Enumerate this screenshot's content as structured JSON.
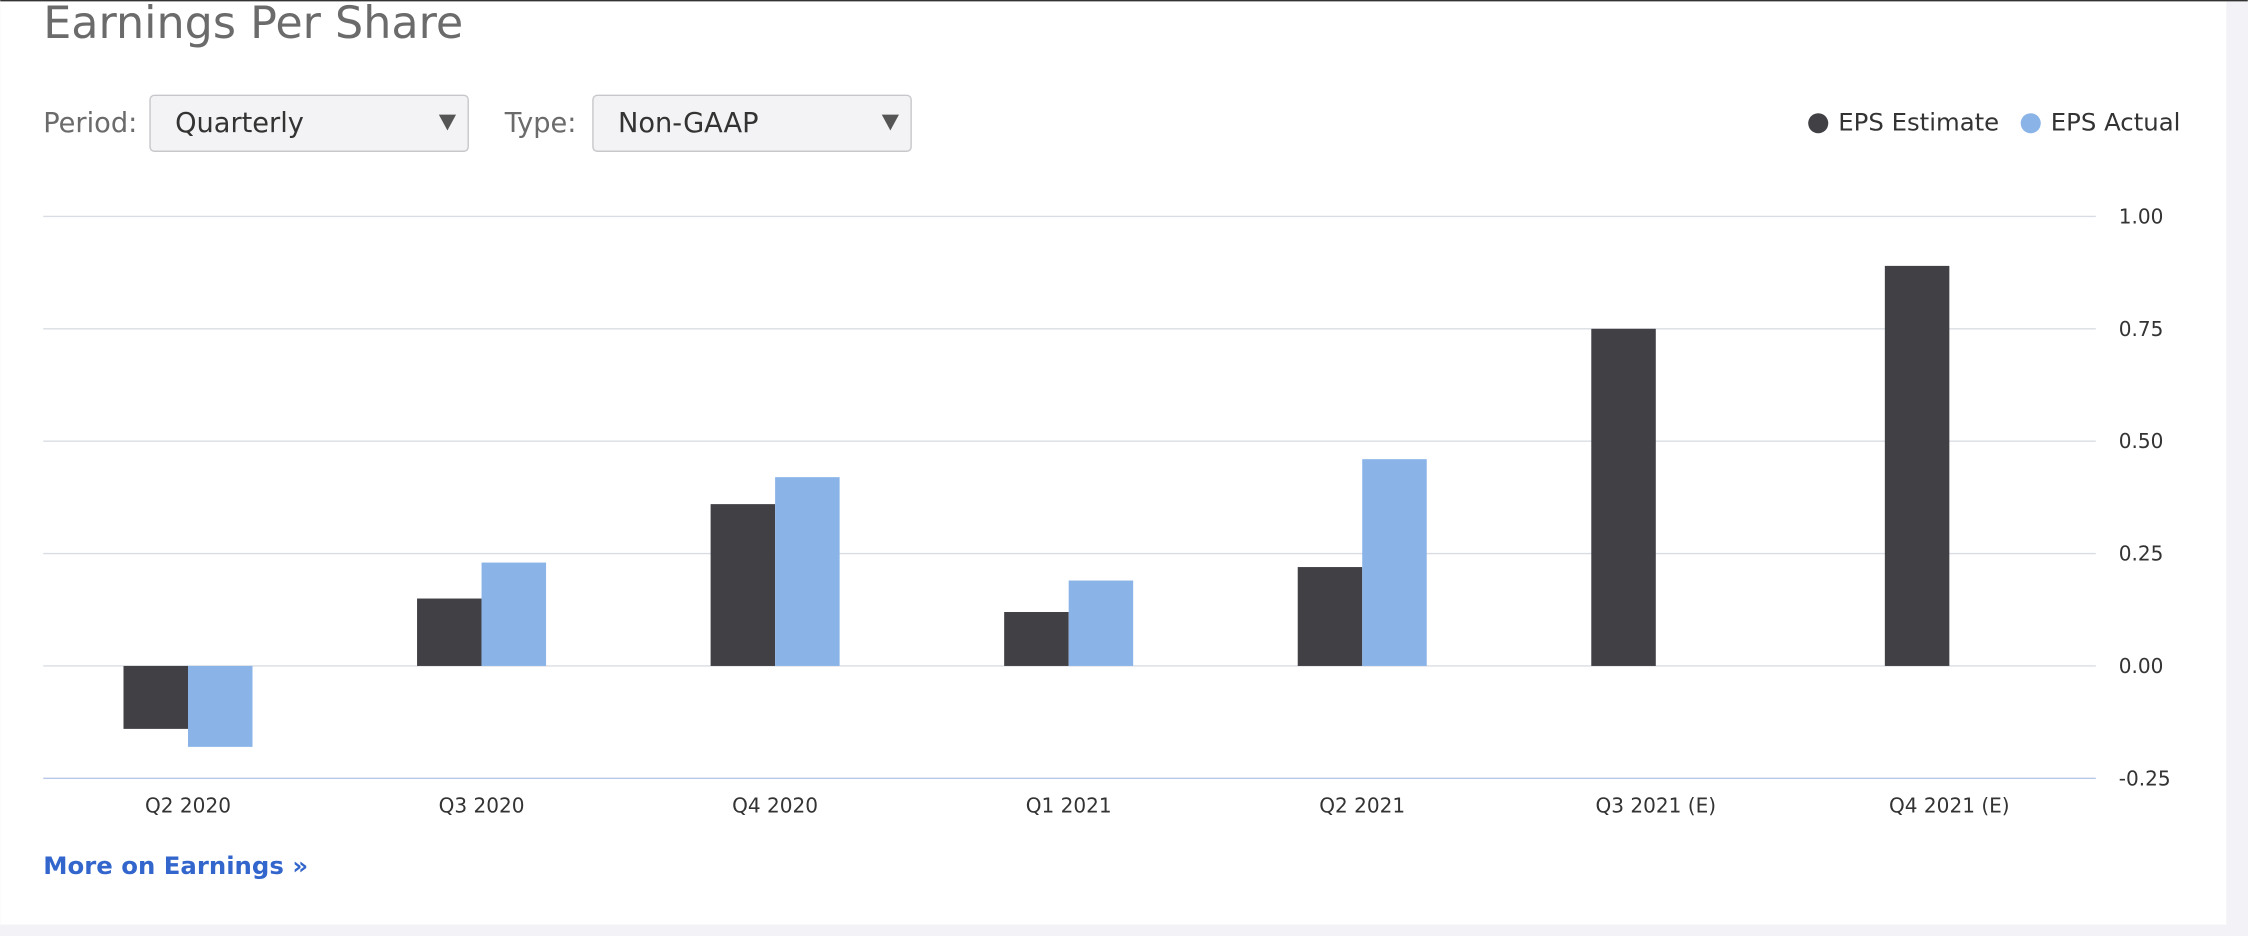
{
  "title": "Earnings Per Share",
  "controls": [
    {
      "label": "Period:",
      "value": "Quarterly"
    },
    {
      "label": "Type:",
      "value": "Non-GAAP"
    }
  ],
  "link": "More on Earnings »",
  "chart_data": {
    "type": "bar",
    "categories": [
      "Q2 2020",
      "Q3 2020",
      "Q4 2020",
      "Q1 2021",
      "Q2 2021",
      "Q3 2021 (E)",
      "Q4 2021 (E)"
    ],
    "series": [
      {
        "name": "EPS Estimate",
        "color": "#404045",
        "values": [
          -0.14,
          0.15,
          0.36,
          0.12,
          0.22,
          0.75,
          0.89
        ]
      },
      {
        "name": "EPS Actual",
        "color": "#8ab4e8",
        "values": [
          -0.18,
          0.23,
          0.42,
          0.19,
          0.46,
          null,
          null
        ]
      }
    ],
    "ylim": [
      -0.25,
      1.0
    ],
    "yticks": [
      {
        "value": -0.25,
        "label": "-0.25"
      },
      {
        "value": 0,
        "label": "0.00"
      },
      {
        "value": 0.25,
        "label": "0.25"
      },
      {
        "value": 0.5,
        "label": "0.50"
      },
      {
        "value": 0.75,
        "label": "0.75"
      },
      {
        "value": 1.0,
        "label": "1.00"
      }
    ],
    "grid": true,
    "legend": "top-right"
  }
}
